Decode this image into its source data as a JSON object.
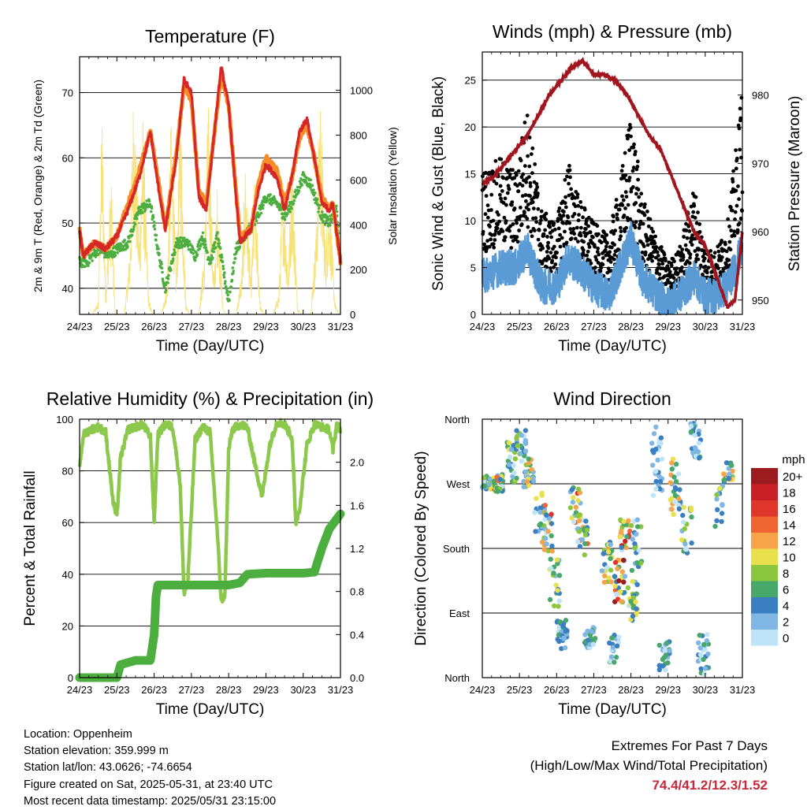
{
  "chart_data": [
    {
      "type": "line",
      "title": "Temperature (F)",
      "xlabel": "Time (Day/UTC)",
      "ylabel": "2m & 9m T (Red, Orange) & 2m Td (Green)",
      "y2label": "Solar Insolation (Yellow)",
      "x_ticks": [
        "24/23",
        "25/23",
        "26/23",
        "27/23",
        "28/23",
        "29/23",
        "30/23",
        "31/23"
      ],
      "ylim": [
        36,
        75.5
      ],
      "y_ticks": [
        40,
        50,
        60,
        70
      ],
      "y2lim": [
        0,
        1150
      ],
      "y2_ticks": [
        0,
        200,
        400,
        600,
        800,
        1000
      ],
      "grid": true,
      "colors": {
        "t2m": "#d62728",
        "t9m": "#f58c28",
        "td2m": "#4cae3f",
        "solar": "#f7e27a"
      },
      "series": [
        {
          "key": "t2m",
          "x": [
            0,
            0.1,
            0.4,
            0.7,
            1.0,
            1.3,
            1.6,
            1.9,
            2.1,
            2.3,
            2.6,
            2.8,
            3.0,
            3.2,
            3.4,
            3.6,
            3.8,
            4.0,
            4.3,
            4.6,
            4.8,
            5.0,
            5.3,
            5.5,
            5.7,
            5.9,
            6.1,
            6.3,
            6.5,
            6.7,
            6.8,
            7.0
          ],
          "y": [
            49,
            45,
            47,
            46,
            48,
            52,
            57,
            64,
            56,
            49,
            60,
            72,
            70,
            54,
            52,
            63,
            74,
            68,
            47,
            49,
            55,
            59,
            57,
            52,
            57,
            64,
            66,
            60,
            53,
            52,
            53,
            44
          ]
        },
        {
          "key": "t9m",
          "x": [
            0,
            0.1,
            0.4,
            0.7,
            1.0,
            1.3,
            1.6,
            1.9,
            2.1,
            2.3,
            2.6,
            2.8,
            3.0,
            3.2,
            3.4,
            3.6,
            3.8,
            4.0,
            4.3,
            4.6,
            4.8,
            5.0,
            5.3,
            5.5,
            5.7,
            5.9,
            6.1,
            6.3,
            6.5,
            6.7,
            6.8,
            7.0
          ],
          "y": [
            49,
            45,
            47,
            46,
            48,
            53,
            58,
            64,
            57,
            49,
            61,
            71,
            69,
            55,
            53,
            63,
            73,
            68,
            48,
            49,
            56,
            60,
            58,
            53,
            57,
            63,
            65,
            60,
            54,
            52,
            53,
            44
          ]
        },
        {
          "key": "td2m",
          "x": [
            0,
            0.2,
            0.5,
            0.8,
            1.0,
            1.3,
            1.6,
            1.9,
            2.1,
            2.3,
            2.6,
            2.9,
            3.1,
            3.3,
            3.5,
            3.7,
            4.0,
            4.2,
            4.4,
            4.7,
            5.0,
            5.3,
            5.5,
            5.7,
            6.0,
            6.2,
            6.5,
            6.7,
            6.9,
            7.0
          ],
          "y": [
            44,
            44,
            46,
            45,
            46,
            47,
            52,
            53,
            46,
            40,
            47,
            47,
            45,
            48,
            44,
            48,
            38,
            46,
            48,
            50,
            54,
            53,
            51,
            53,
            57,
            56,
            51,
            50,
            52,
            44
          ]
        },
        {
          "key": "solar",
          "x": [
            0,
            0.2,
            0.35,
            0.5,
            0.6,
            0.7,
            0.85,
            0.95,
            1.1,
            1.2,
            1.35,
            1.45,
            1.6,
            1.7,
            1.85,
            1.95,
            2.1,
            2.2,
            2.35,
            2.45,
            2.6,
            2.7,
            2.85,
            2.95,
            3.1,
            3.2,
            3.35,
            3.45,
            3.6,
            3.7,
            3.85,
            3.95,
            4.1,
            4.2,
            4.35,
            4.45,
            4.6,
            4.7,
            4.85,
            4.95,
            5.1,
            5.2,
            5.35,
            5.45,
            5.6,
            5.7,
            5.85,
            5.95,
            6.1,
            6.2,
            6.35,
            6.45,
            6.6,
            6.7,
            6.85,
            6.95,
            7.0
          ],
          "y": [
            0,
            0,
            0,
            60,
            950,
            100,
            650,
            0,
            0,
            0,
            300,
            1050,
            350,
            900,
            80,
            0,
            0,
            0,
            150,
            900,
            200,
            1000,
            50,
            0,
            0,
            0,
            300,
            1000,
            150,
            600,
            20,
            0,
            0,
            0,
            200,
            700,
            150,
            650,
            40,
            0,
            0,
            0,
            100,
            650,
            200,
            750,
            30,
            0,
            0,
            0,
            400,
            1050,
            300,
            600,
            60,
            0,
            0
          ]
        }
      ]
    },
    {
      "type": "scatter",
      "title": "Winds (mph) & Pressure (mb)",
      "xlabel": "Time (Day/UTC)",
      "ylabel": "Sonic Wind & Gust (Blue, Black)",
      "y2label": "Station Pressure (Maroon)",
      "x_ticks": [
        "24/23",
        "25/23",
        "26/23",
        "27/23",
        "28/23",
        "29/23",
        "30/23",
        "31/23"
      ],
      "ylim": [
        0,
        28
      ],
      "y_ticks": [
        0,
        5,
        10,
        15,
        20,
        25
      ],
      "y2lim": [
        947.9,
        986.3
      ],
      "y2_ticks": [
        950,
        960,
        970,
        980
      ],
      "grid": true,
      "colors": {
        "wind": "#5b9bd5",
        "gust": "#000000",
        "pressure": "#a0151e"
      },
      "series": [
        {
          "key": "pressure",
          "x": [
            0,
            0.3,
            0.6,
            0.9,
            1.2,
            1.5,
            1.8,
            2.1,
            2.4,
            2.7,
            3.0,
            3.3,
            3.6,
            3.9,
            4.2,
            4.5,
            4.8,
            5.1,
            5.4,
            5.7,
            6.0,
            6.2,
            6.4,
            6.6,
            6.8,
            7.0
          ],
          "y": [
            967,
            968,
            970,
            972,
            974,
            977,
            980,
            982,
            984,
            985,
            983,
            983,
            982,
            980,
            977,
            974,
            972,
            968,
            964,
            960,
            958,
            955,
            952,
            949,
            950,
            960
          ]
        }
      ]
    },
    {
      "type": "line",
      "title": "Relative Humidity (%) & Precipitation (in)",
      "xlabel": "Time (Day/UTC)",
      "ylabel": "Percent & Total Rainfall",
      "x_ticks": [
        "24/23",
        "25/23",
        "26/23",
        "27/23",
        "28/23",
        "29/23",
        "30/23",
        "31/23"
      ],
      "ylim": [
        0,
        100
      ],
      "y_ticks": [
        0,
        20,
        40,
        60,
        80,
        100
      ],
      "y2lim": [
        0,
        2.4
      ],
      "y2_ticks": [
        0.0,
        0.4,
        0.8,
        1.2,
        1.6,
        2.0
      ],
      "grid": true,
      "colors": {
        "rh": "#8cc84b",
        "precip": "#4cae3f"
      },
      "series": [
        {
          "key": "rh",
          "x": [
            0,
            0.1,
            0.3,
            0.5,
            0.7,
            0.9,
            1.0,
            1.1,
            1.3,
            1.5,
            1.7,
            1.9,
            2.0,
            2.1,
            2.3,
            2.5,
            2.7,
            2.8,
            2.9,
            3.1,
            3.3,
            3.5,
            3.7,
            3.8,
            3.9,
            4.0,
            4.1,
            4.3,
            4.5,
            4.7,
            4.9,
            5.1,
            5.3,
            5.5,
            5.7,
            5.8,
            5.9,
            6.1,
            6.3,
            6.5,
            6.7,
            6.8,
            6.9,
            7.0
          ],
          "y": [
            82,
            94,
            96,
            97,
            95,
            68,
            62,
            85,
            96,
            97,
            98,
            93,
            60,
            94,
            98,
            97,
            75,
            33,
            36,
            92,
            97,
            95,
            55,
            30,
            32,
            88,
            96,
            98,
            97,
            83,
            70,
            90,
            99,
            98,
            93,
            60,
            65,
            90,
            98,
            97,
            96,
            88,
            98,
            96
          ]
        },
        {
          "key": "precip",
          "x": [
            0,
            0.5,
            1.0,
            1.1,
            1.5,
            1.9,
            2.0,
            2.05,
            2.1,
            2.5,
            3.0,
            3.5,
            4.0,
            4.3,
            4.5,
            5.0,
            5.5,
            6.0,
            6.3,
            6.5,
            6.7,
            7.0
          ],
          "y": [
            0,
            0,
            0,
            0.12,
            0.16,
            0.16,
            0.4,
            0.75,
            0.86,
            0.86,
            0.86,
            0.86,
            0.86,
            0.88,
            0.96,
            0.97,
            0.97,
            0.97,
            0.98,
            1.2,
            1.38,
            1.52
          ]
        }
      ]
    },
    {
      "type": "scatter",
      "title": "Wind Direction",
      "xlabel": "Time (Day/UTC)",
      "ylabel": "Direction (Colored By Speed)",
      "x_ticks": [
        "24/23",
        "25/23",
        "26/23",
        "27/23",
        "28/23",
        "29/23",
        "30/23",
        "31/23"
      ],
      "y_ticks": [
        "North",
        "East",
        "South",
        "West",
        "North"
      ],
      "ylim": [
        0,
        360
      ],
      "grid": true,
      "legend_title": "mph",
      "legend_labels": [
        "20+",
        "18",
        "16",
        "14",
        "12",
        "10",
        "8",
        "6",
        "4",
        "2",
        "0"
      ],
      "legend_colors": [
        "#9b1b1e",
        "#c82024",
        "#e0352b",
        "#ef6432",
        "#f7a34a",
        "#e9e04d",
        "#8cc63f",
        "#48a76a",
        "#3a7fc1",
        "#7fb6e3",
        "#bfe3f7"
      ],
      "legend_position": "right"
    }
  ],
  "info": {
    "location": "Location: Oppenheim",
    "elevation": "Station elevation: 359.999 m",
    "latlon": "Station lat/lon: 43.0626; -74.6654",
    "created": "Figure created on Sat, 2025-05-31, at 23:40 UTC",
    "recent": "Most recent data timestamp: 2025/05/31 23:15:00"
  },
  "extremes": {
    "title": "Extremes For Past 7 Days",
    "subtitle": "(High/Low/Max Wind/Total Precipitation)",
    "values": "74.4/41.2/12.3/1.52"
  }
}
